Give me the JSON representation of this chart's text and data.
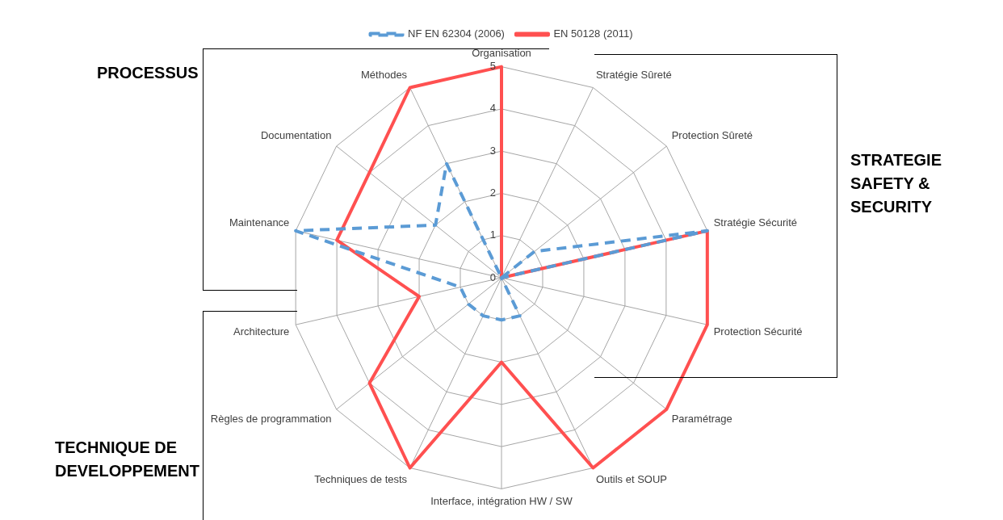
{
  "chart_data": {
    "type": "radar",
    "categories": [
      "Organisation",
      "Stratégie Sûreté",
      "Protection Sûreté",
      "Stratégie Sécurité",
      "Protection Sécurité",
      "Paramétrage",
      "Outils et SOUP",
      "Interface, intégration HW / SW",
      "Techniques de tests",
      "Règles de programmation",
      "Architecture",
      "Maintenance",
      "Documentation",
      "Méthodes"
    ],
    "series": [
      {
        "name": "NF EN 62304 (2006)",
        "color": "#5b9bd5",
        "line_style": "dashed",
        "values": [
          0,
          0,
          1,
          5,
          0,
          0,
          1,
          1,
          1,
          1,
          1,
          5,
          2,
          3
        ]
      },
      {
        "name": "EN 50128 (2011)",
        "color": "#ff5050",
        "line_style": "solid",
        "values": [
          5,
          0,
          0,
          5,
          5,
          5,
          5,
          2,
          5,
          4,
          2,
          4,
          4,
          5
        ]
      }
    ],
    "ylim": [
      0,
      5
    ],
    "yticks": [
      0,
      1,
      2,
      3,
      4,
      5
    ],
    "grid": true,
    "legend": "top",
    "marker": "none",
    "annotations": [
      "PROCESSUS",
      "STRATEGIE SAFETY & SECURITY",
      "TECHNIQUE DE DEVELOPPEMENT"
    ]
  }
}
